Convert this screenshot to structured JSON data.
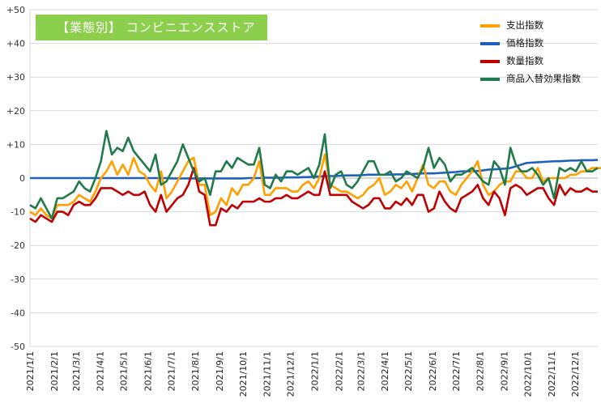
{
  "chart_data": {
    "type": "line",
    "title": "【業態別】 コンビニエンスストア",
    "ylim": [
      -50,
      50
    ],
    "y_ticks": [
      "+50",
      "+40",
      "+30",
      "+20",
      "+10",
      "0",
      "-10",
      "-20",
      "-30",
      "-40",
      "-50"
    ],
    "y_tick_values": [
      50,
      40,
      30,
      20,
      10,
      0,
      -10,
      -20,
      -30,
      -40,
      -50
    ],
    "x_labels": [
      "2021/1/1",
      "2021/2/1",
      "2021/3/1",
      "2021/4/1",
      "2021/5/1",
      "2021/6/1",
      "2021/7/1",
      "2021/8/1",
      "2021/9/1",
      "2021/10/1",
      "2021/11/1",
      "2021/12/1",
      "2022/1/1",
      "2022/2/1",
      "2022/3/1",
      "2022/4/1",
      "2022/5/1",
      "2022/6/1",
      "2022/7/1",
      "2022/8/1",
      "2022/9/1",
      "2022/10/1",
      "2022/11/1",
      "2022/12/1"
    ],
    "x_label_positions": [
      0,
      4.43,
      8.43,
      12.86,
      17.14,
      21.57,
      25.86,
      30.29,
      34.71,
      39.0,
      43.43,
      47.71,
      52.14,
      56.57,
      60.57,
      65.0,
      69.29,
      73.71,
      78.0,
      82.43,
      86.86,
      91.14,
      95.57,
      99.86
    ],
    "x_range": [
      0,
      104
    ],
    "legend_position": "top-right",
    "grid": true,
    "series": [
      {
        "name": "支出指数",
        "color": "#ffa000",
        "values": [
          -10,
          -11,
          -9,
          -11,
          -12,
          -8,
          -8,
          -8,
          -7,
          -5,
          -6,
          -7,
          -4,
          0,
          2,
          5,
          1,
          4,
          1,
          6,
          2,
          1,
          -2,
          -4,
          2,
          -6,
          -4,
          -1,
          2,
          5,
          6,
          -2,
          -2,
          -11,
          -10,
          -6,
          -8,
          -3,
          -5,
          -2,
          -2,
          0,
          5,
          -5,
          -5,
          -3,
          -3,
          -3,
          -4,
          -4,
          -2,
          -1,
          -3,
          0,
          7,
          -2,
          -3,
          -4,
          -4,
          -5,
          -6,
          -5,
          -3,
          -2,
          0,
          -5,
          -4,
          -2,
          -3,
          -1,
          -4,
          0,
          4,
          -2,
          -3,
          -1,
          -1,
          -4,
          -5,
          -2,
          0,
          2,
          5,
          -2,
          -5,
          -4,
          -2,
          -1,
          -1,
          2,
          2,
          0,
          0,
          3,
          -1,
          0,
          0,
          0,
          0,
          1,
          1,
          2,
          2,
          3,
          3,
          3,
          3
        ]
      },
      {
        "name": "価格指数",
        "color": "#1f5fc0",
        "values": [
          0,
          0,
          0,
          0,
          0,
          0,
          0,
          0,
          0,
          0,
          0,
          0,
          0,
          0,
          0,
          0,
          0,
          0,
          0,
          0,
          0,
          0,
          0,
          0,
          0,
          0,
          -0.1,
          -0.1,
          -0.1,
          -0.1,
          -0.1,
          -0.1,
          -0.1,
          -0.1,
          -0.1,
          -0.1,
          -0.1,
          -0.1,
          -0.1,
          -0.1,
          0,
          0,
          0,
          0.1,
          0.1,
          0.1,
          0.1,
          0.2,
          0.2,
          0.2,
          0.3,
          0.3,
          0.4,
          0.5,
          0.6,
          0.6,
          0.6,
          0.7,
          0.8,
          0.8,
          0.8,
          0.9,
          1,
          1,
          1,
          1,
          1,
          1.1,
          1.1,
          1.2,
          1.2,
          1.3,
          1.4,
          1.4,
          1.4,
          1.5,
          1.6,
          1.7,
          1.8,
          2,
          2,
          2,
          2.1,
          2.3,
          2.5,
          2.6,
          2.7,
          2.8,
          3,
          3.5,
          4,
          4.5,
          4.6,
          4.7,
          4.8,
          4.9,
          5,
          5,
          5.1,
          5.2,
          5.2,
          5.3,
          5.3,
          5.3,
          5.4
        ]
      },
      {
        "name": "数量指数",
        "color": "#c00000",
        "values": [
          -12,
          -13,
          -11,
          -12,
          -13,
          -10,
          -10,
          -11,
          -8,
          -7,
          -8,
          -8,
          -6,
          -3,
          -3,
          -3,
          -4,
          -5,
          -4,
          -5,
          -5,
          -4,
          -8,
          -10,
          -5,
          -10,
          -8,
          -6,
          -5,
          -2,
          3,
          -4,
          -5,
          -14,
          -14,
          -9,
          -10,
          -8,
          -9,
          -7,
          -7,
          -7,
          -6,
          -7,
          -7,
          -6,
          -6,
          -5,
          -6,
          -6,
          -5,
          -4,
          -5,
          -5,
          2,
          -5,
          -5,
          -5,
          -5,
          -7,
          -8,
          -9,
          -8,
          -6,
          -6,
          -9,
          -9,
          -7,
          -8,
          -6,
          -8,
          -5,
          -5,
          -10,
          -9,
          -4,
          -7,
          -9,
          -10,
          -6,
          -5,
          -4,
          -2,
          -6,
          -8,
          -4,
          -6,
          -11,
          -3,
          -2,
          -3,
          -5,
          -4,
          -3,
          -3,
          -6,
          -8,
          -2,
          -5,
          -3,
          -4,
          -4,
          -3,
          -4,
          -4
        ]
      },
      {
        "name": "商品入替効果指数",
        "color": "#217a4a",
        "values": [
          -8,
          -9,
          -6,
          -9,
          -12,
          -6,
          -6,
          -5,
          -4,
          -1,
          -3,
          -4,
          0,
          5,
          14,
          7,
          9,
          8,
          12,
          8,
          6,
          4,
          2,
          7,
          -2,
          -1,
          2,
          5,
          10,
          6,
          2,
          -1,
          0,
          -5,
          2,
          2,
          5,
          3,
          6,
          5,
          4,
          4,
          9,
          -2,
          -3,
          1,
          -1,
          2,
          2,
          1,
          2,
          3,
          0,
          4,
          13,
          -3,
          1,
          2,
          -2,
          -3,
          -1,
          2,
          5,
          5,
          1,
          1,
          2,
          -1,
          0,
          2,
          1,
          0,
          3,
          9,
          3,
          6,
          4,
          -1,
          1,
          1,
          2,
          3,
          1,
          -1,
          -2,
          5,
          3,
          -2,
          9,
          4,
          2,
          2,
          3,
          1,
          -2,
          0,
          -6,
          3,
          2,
          3,
          2,
          5,
          2,
          2,
          3
        ]
      }
    ]
  }
}
